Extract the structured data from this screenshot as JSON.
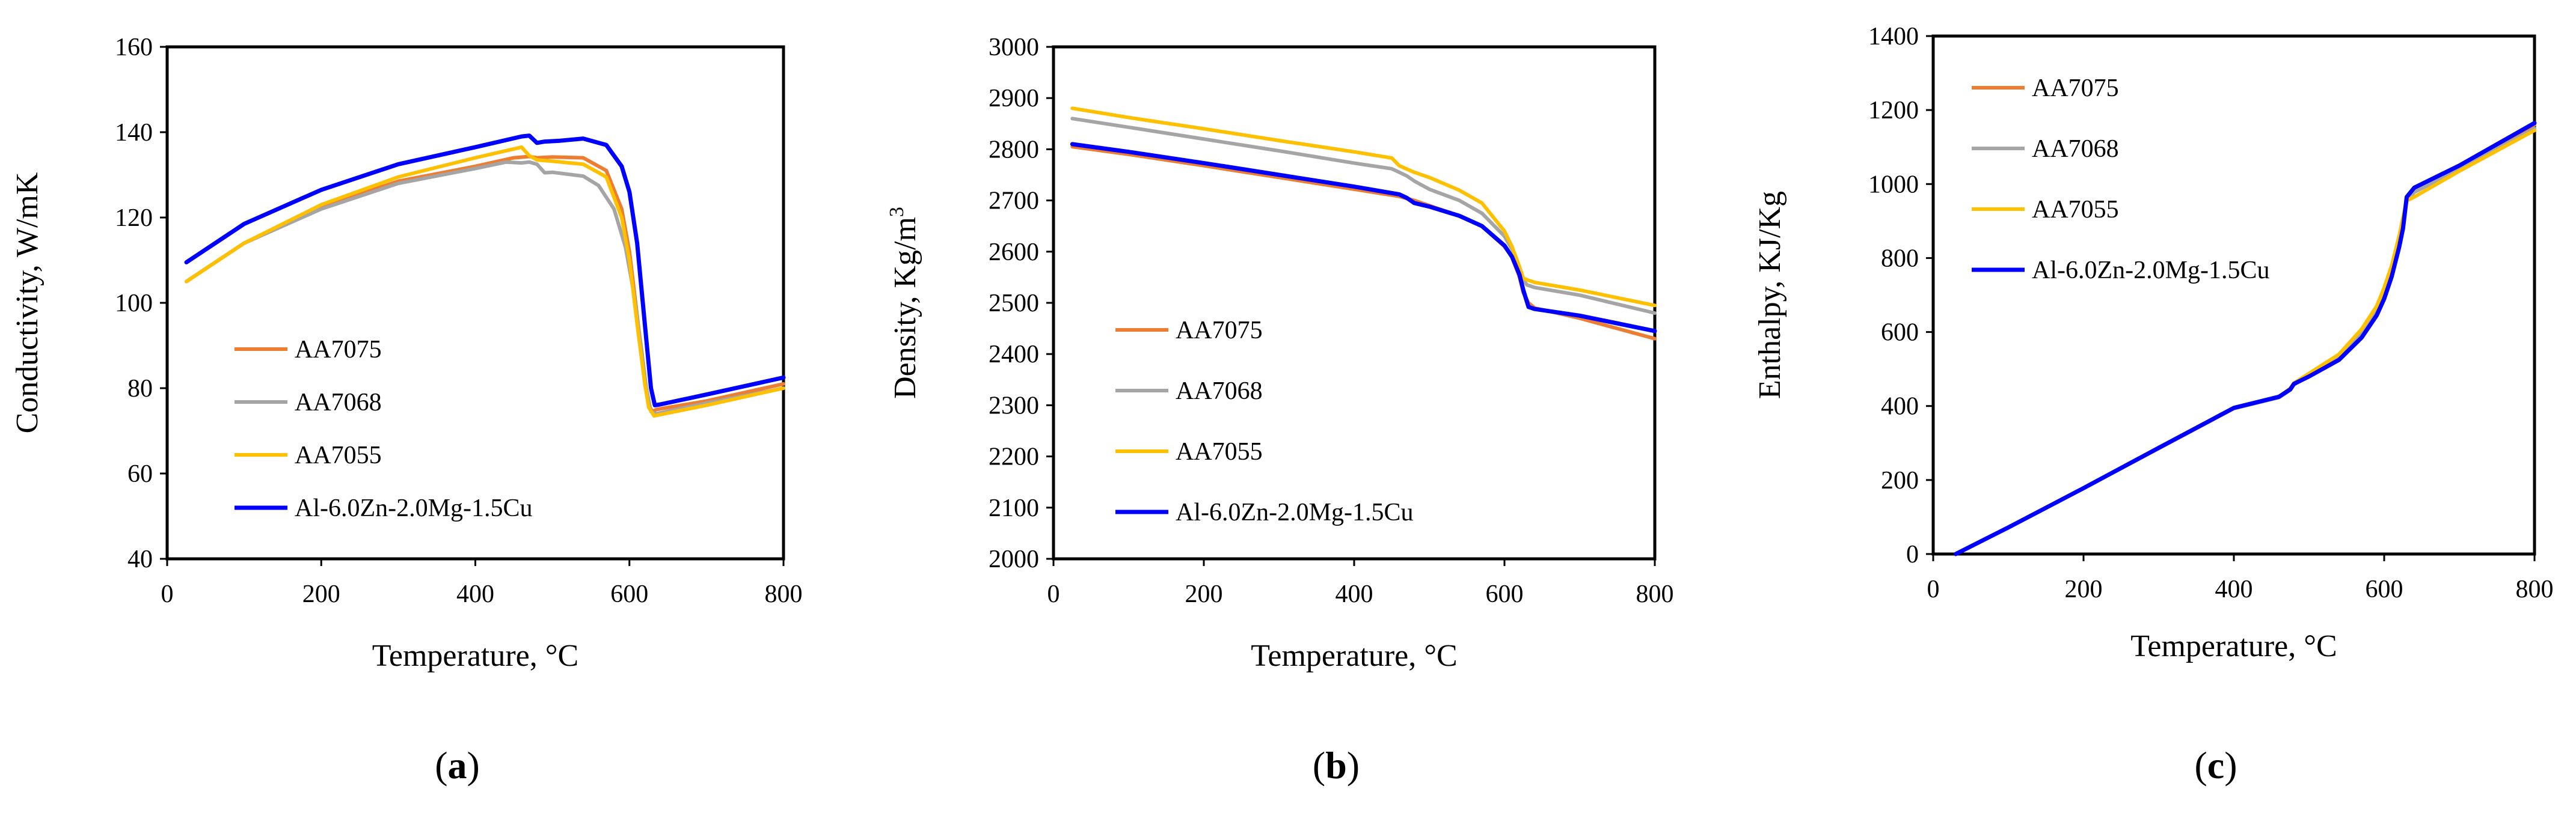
{
  "colors": {
    "AA7075": "#ED7D31",
    "AA7068": "#A5A5A5",
    "AA7055": "#FFC000",
    "Al-6.0Zn-2.0Mg-1.5Cu": "#0000FF",
    "axis": "#000000",
    "background": "#ffffff"
  },
  "chart_data": [
    {
      "type": "line",
      "panel_label": "(a)",
      "panel_letter": "a",
      "title": "",
      "xlabel": "Temperature, °C",
      "ylabel": "Conductivity, W/mK",
      "xlim": [
        0,
        800
      ],
      "ylim": [
        40,
        160
      ],
      "xticks": [
        0,
        200,
        400,
        600,
        800
      ],
      "yticks": [
        40,
        60,
        80,
        100,
        120,
        140,
        160
      ],
      "grid": false,
      "legend_placement": "lower-left",
      "series": [
        {
          "name": "AA7075",
          "x": [
            25,
            100,
            200,
            300,
            400,
            450,
            470,
            480,
            500,
            540,
            570,
            590,
            600,
            610,
            620,
            625,
            630,
            635,
            700,
            800
          ],
          "y": [
            105,
            114,
            122.5,
            128.5,
            132,
            134,
            134.3,
            134,
            134.2,
            134,
            131,
            122,
            112,
            97,
            82,
            76,
            74.5,
            75,
            77,
            81
          ]
        },
        {
          "name": "AA7068",
          "x": [
            25,
            100,
            200,
            300,
            400,
            440,
            460,
            470,
            480,
            490,
            500,
            540,
            560,
            580,
            595,
            605,
            615,
            622,
            628,
            635,
            700,
            800
          ],
          "y": [
            105,
            114,
            122,
            128,
            131.5,
            133,
            132.8,
            133,
            132.5,
            130.5,
            130.6,
            129.7,
            127.5,
            122,
            113,
            103,
            90,
            80,
            74.5,
            74,
            76.5,
            80
          ]
        },
        {
          "name": "AA7055",
          "x": [
            25,
            100,
            200,
            300,
            400,
            460,
            470,
            480,
            500,
            540,
            570,
            590,
            600,
            610,
            620,
            625,
            632,
            700,
            800
          ],
          "y": [
            105,
            114,
            123,
            129.5,
            134,
            136.5,
            134.5,
            133.5,
            133.2,
            132.5,
            129.5,
            120,
            110,
            95,
            81,
            75.5,
            73.5,
            76,
            80
          ]
        },
        {
          "name": "Al-6.0Zn-2.0Mg-1.5Cu",
          "x": [
            25,
            100,
            200,
            300,
            400,
            460,
            470,
            480,
            490,
            510,
            540,
            570,
            590,
            600,
            610,
            620,
            628,
            633,
            640,
            700,
            800
          ],
          "y": [
            109.5,
            118.5,
            126.5,
            132.5,
            136.5,
            139,
            139.2,
            137.5,
            137.8,
            138,
            138.5,
            137,
            132,
            126,
            114,
            95,
            80,
            76,
            76.2,
            78.5,
            82.5
          ]
        }
      ]
    },
    {
      "type": "line",
      "panel_label": "(b)",
      "panel_letter": "b",
      "title": "",
      "xlabel": "Temperature, °C",
      "ylabel": "Density, Kg/m³",
      "ylabel_main": "Density, Kg/m",
      "ylabel_sup": "3",
      "xlim": [
        0,
        800
      ],
      "ylim": [
        2000,
        3000
      ],
      "xticks": [
        0,
        200,
        400,
        600,
        800
      ],
      "yticks": [
        2000,
        2100,
        2200,
        2300,
        2400,
        2500,
        2600,
        2700,
        2800,
        2900,
        3000
      ],
      "grid": false,
      "legend_placement": "lower-left",
      "series": [
        {
          "name": "AA7075",
          "x": [
            25,
            100,
            200,
            300,
            400,
            460,
            470,
            480,
            500,
            540,
            570,
            600,
            610,
            620,
            625,
            632,
            640,
            700,
            800
          ],
          "y": [
            2805,
            2790,
            2768,
            2745,
            2722,
            2708,
            2704,
            2700,
            2690,
            2670,
            2650,
            2610,
            2590,
            2550,
            2520,
            2500,
            2490,
            2470,
            2430
          ]
        },
        {
          "name": "AA7068",
          "x": [
            25,
            100,
            200,
            300,
            400,
            450,
            460,
            470,
            480,
            500,
            540,
            570,
            600,
            610,
            620,
            625,
            630,
            640,
            700,
            800
          ],
          "y": [
            2860,
            2843,
            2820,
            2797,
            2773,
            2762,
            2755,
            2748,
            2738,
            2722,
            2700,
            2675,
            2630,
            2605,
            2570,
            2545,
            2535,
            2530,
            2515,
            2480
          ]
        },
        {
          "name": "AA7055",
          "x": [
            25,
            100,
            200,
            300,
            400,
            450,
            460,
            480,
            500,
            540,
            570,
            600,
            610,
            620,
            625,
            630,
            640,
            700,
            800
          ],
          "y": [
            2880,
            2862,
            2840,
            2817,
            2795,
            2783,
            2768,
            2755,
            2745,
            2720,
            2695,
            2640,
            2610,
            2570,
            2548,
            2545,
            2540,
            2525,
            2495
          ]
        },
        {
          "name": "Al-6.0Zn-2.0Mg-1.5Cu",
          "x": [
            25,
            100,
            200,
            300,
            400,
            460,
            470,
            480,
            500,
            540,
            570,
            600,
            610,
            620,
            625,
            632,
            640,
            700,
            800
          ],
          "y": [
            2810,
            2795,
            2773,
            2750,
            2727,
            2712,
            2705,
            2695,
            2688,
            2670,
            2650,
            2612,
            2590,
            2555,
            2525,
            2492,
            2488,
            2475,
            2445
          ]
        }
      ]
    },
    {
      "type": "line",
      "panel_label": "(c)",
      "panel_letter": "c",
      "title": "",
      "xlabel": "Temperature, °C",
      "ylabel": "Enthalpy, KJ/Kg",
      "xlim": [
        0,
        800
      ],
      "ylim": [
        0,
        1400
      ],
      "xticks": [
        0,
        200,
        400,
        600,
        800
      ],
      "yticks": [
        0,
        200,
        400,
        600,
        800,
        1000,
        1200,
        1400
      ],
      "grid": false,
      "legend_placement": "upper-left",
      "series": [
        {
          "name": "AA7075",
          "x": [
            30,
            100,
            200,
            300,
            400,
            460,
            475,
            480,
            500,
            540,
            570,
            590,
            600,
            610,
            620,
            625,
            630,
            640,
            700,
            800
          ],
          "y": [
            0,
            72,
            178,
            287,
            395,
            425,
            445,
            460,
            485,
            535,
            600,
            660,
            710,
            770,
            850,
            900,
            960,
            985,
            1048,
            1160
          ]
        },
        {
          "name": "AA7068",
          "x": [
            30,
            100,
            200,
            300,
            400,
            460,
            475,
            480,
            500,
            540,
            570,
            590,
            600,
            610,
            620,
            625,
            630,
            640,
            700,
            800
          ],
          "y": [
            0,
            72,
            178,
            285,
            393,
            423,
            443,
            458,
            482,
            532,
            597,
            655,
            705,
            765,
            845,
            895,
            955,
            978,
            1040,
            1150
          ]
        },
        {
          "name": "AA7055",
          "x": [
            30,
            100,
            200,
            300,
            400,
            460,
            475,
            480,
            500,
            540,
            570,
            590,
            600,
            610,
            620,
            625,
            630,
            640,
            700,
            800
          ],
          "y": [
            0,
            72,
            178,
            286,
            394,
            425,
            448,
            462,
            488,
            540,
            608,
            670,
            720,
            780,
            860,
            910,
            955,
            965,
            1035,
            1145
          ]
        },
        {
          "name": "Al-6.0Zn-2.0Mg-1.5Cu",
          "x": [
            30,
            100,
            200,
            300,
            400,
            460,
            475,
            480,
            500,
            540,
            570,
            590,
            600,
            610,
            620,
            625,
            630,
            640,
            700,
            800
          ],
          "y": [
            0,
            72,
            178,
            287,
            395,
            425,
            445,
            460,
            480,
            525,
            585,
            645,
            690,
            750,
            830,
            880,
            965,
            990,
            1050,
            1165
          ]
        }
      ]
    }
  ]
}
